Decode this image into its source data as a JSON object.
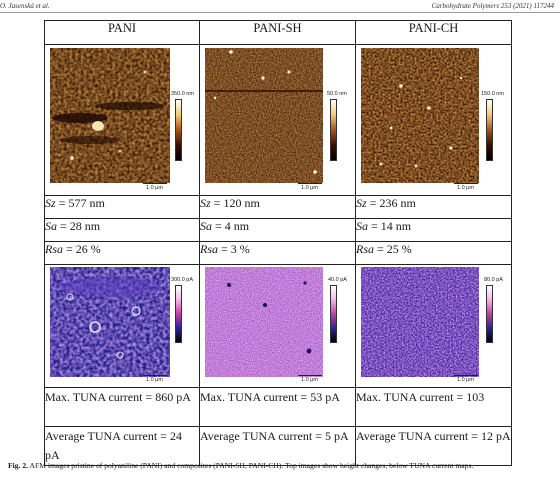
{
  "header": {
    "left": "O. Jasenská et al.",
    "right": "Carbohydrate Polymers 253 (2021) 117244"
  },
  "columns": [
    "PANI",
    "PANI-SH",
    "PANI-CH"
  ],
  "height_maps": [
    {
      "scale_max": "350.0 nm",
      "scale_bar": "1.0 µm"
    },
    {
      "scale_max": "50.0 nm",
      "scale_bar": "1.0 µm"
    },
    {
      "scale_max": "150.0 nm",
      "scale_bar": "1.0 µm"
    }
  ],
  "rows": {
    "sz": {
      "label": "Sz",
      "values": [
        "= 577 nm",
        "= 120 nm",
        "= 236 nm"
      ]
    },
    "sa": {
      "label": "Sa",
      "values": [
        "= 28 nm",
        "= 4 nm",
        "= 14 nm"
      ]
    },
    "rsa": {
      "label": "Rsa",
      "values": [
        "= 26 %",
        "= 3 %",
        "= 25 %"
      ]
    }
  },
  "current_maps": [
    {
      "scale_max": "300.0 pA",
      "scale_bar": "1.0 µm"
    },
    {
      "scale_max": "40.0 pA",
      "scale_bar": "1.0 µm"
    },
    {
      "scale_max": "80.0 pA",
      "scale_bar": "1.0 µm"
    }
  ],
  "max_tuna": [
    "Max. TUNA current = 860 pA",
    "Max. TUNA current = 53 pA",
    "Max. TUNA current = 103"
  ],
  "avg_tuna": [
    "Average TUNA current = 24 pA",
    "Average TUNA current = 5 pA",
    "Average TUNA current = 12 pA"
  ],
  "caption": {
    "label": "Fig. 2.",
    "text": "AFM images pristine of polyaniline (PANI) and composites (PANI-SH, PANI-CH). Top images show height changes, below TUNA current maps."
  }
}
